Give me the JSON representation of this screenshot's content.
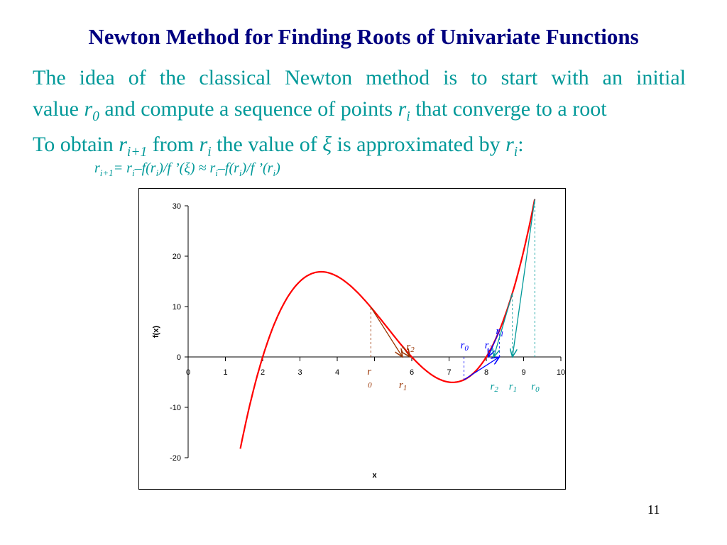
{
  "title": "Newton Method for Finding Roots of Univariate Functions",
  "para1_line1": "The idea of the classical Newton method is to start with an initial",
  "para1_line2a": "value",
  "para1_r0": "r",
  "para1_r0_sub": "0",
  "para1_line2b": "and compute a sequence of points",
  "para1_ri": "r",
  "para1_ri_sub": "i",
  "para1_line2c": "that converge to a root",
  "para2_a": "To obtain",
  "para2_r": "r",
  "para2_rsub": "i+1",
  "para2_b": "from",
  "para2_r2": "r",
  "para2_r2sub": "i",
  "para2_c": "the value of",
  "para2_xi": "ξ",
  "para2_d": "is approximated by",
  "para2_r3": "r",
  "para2_r3sub": "i",
  "para2_e": ":",
  "formula": {
    "lhs": "r",
    "lhs_sub": "i+1",
    "mid1": "= r",
    "s1": "i",
    "mid2": "–f(r",
    "s2": "i",
    "mid3": ")/f ’(ξ) ≈ r",
    "s3": "i",
    "mid4": "–f(r",
    "s4": "i",
    "mid5": ")/f ’(r",
    "s5": "i",
    "mid6": ")"
  },
  "page_number": "11",
  "chart_data": {
    "type": "line",
    "function": "f(x) = (x-2)(x-6)(x-8)",
    "x_range_curve": [
      1.4,
      9.3
    ],
    "xlabel": "x",
    "ylabel": "f(x)",
    "xlim": [
      0,
      10
    ],
    "ylim": [
      -20,
      30
    ],
    "xticks": [
      0,
      1,
      2,
      3,
      4,
      5,
      6,
      7,
      8,
      9,
      10
    ],
    "xtick_labels": [
      "0",
      "1",
      "2",
      "3",
      "4",
      "",
      "6",
      "7",
      "8",
      "9",
      "10"
    ],
    "yticks": [
      30,
      20,
      10,
      0,
      -10,
      -20
    ],
    "curve_color": "#ff0000",
    "iterations": [
      {
        "color": "#993300",
        "points": [
          4.9,
          5.75,
          5.95
        ],
        "labels": [
          "r\n0",
          "r1",
          "r2"
        ]
      },
      {
        "color": "#0000ff",
        "points": [
          7.4,
          8.35,
          8.05
        ],
        "labels": [
          "r0",
          "r1",
          "r2"
        ]
      },
      {
        "color": "#009999",
        "points": [
          9.3,
          8.7,
          8.2
        ],
        "labels": [
          "r0",
          "r1",
          "r2"
        ]
      }
    ]
  }
}
